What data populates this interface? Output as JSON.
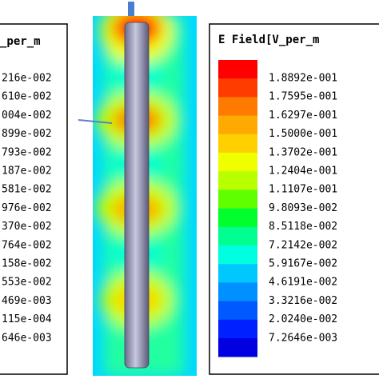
{
  "left_legend": {
    "title": "_per_m",
    "labels": [
      "216e-002",
      "610e-002",
      "004e-002",
      "899e-002",
      "793e-002",
      "187e-002",
      "581e-002",
      "976e-002",
      "370e-002",
      "764e-002",
      "158e-002",
      "553e-002",
      "469e-003",
      "115e-004",
      "646e-003"
    ]
  },
  "right_legend": {
    "title": "E Field[V_per_m",
    "labels": [
      "1.8892e-001",
      "1.7595e-001",
      "1.6297e-001",
      "1.5000e-001",
      "1.3702e-001",
      "1.2404e-001",
      "1.1107e-001",
      "9.8093e-002",
      "8.5118e-002",
      "7.2142e-002",
      "5.9167e-002",
      "4.6191e-002",
      "3.3216e-002",
      "2.0240e-002",
      "7.2646e-003"
    ],
    "colors": [
      "#ff0000",
      "#ff3c00",
      "#ff7a00",
      "#ffaa00",
      "#ffd000",
      "#f0ff00",
      "#b8ff00",
      "#60ff00",
      "#00ff2c",
      "#00ff90",
      "#00ffe0",
      "#00c8ff",
      "#0090ff",
      "#0058ff",
      "#0020ff",
      "#0000e0"
    ]
  }
}
